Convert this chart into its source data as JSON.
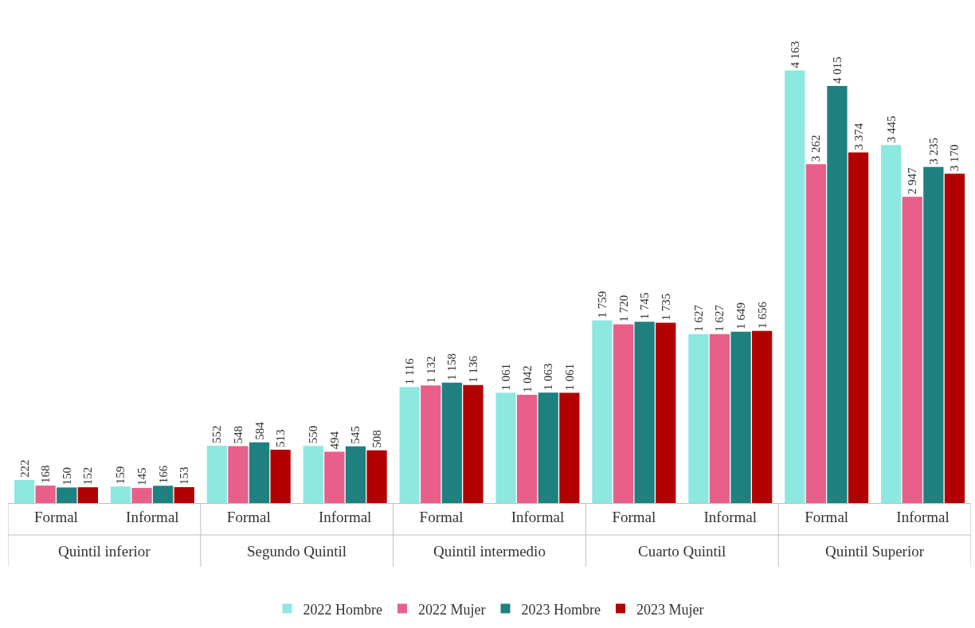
{
  "chart_data": {
    "type": "bar",
    "categories": [
      "Formal",
      "Informal",
      "Formal",
      "Informal",
      "Formal",
      "Informal",
      "Formal",
      "Informal",
      "Formal",
      "Informal"
    ],
    "annotations": [
      "Quintil inferior",
      "Segundo Quintil",
      "Quintil intermedio",
      "Cuarto Quintil",
      "Quintil Superior"
    ],
    "series": [
      {
        "name": "2022 Hombre",
        "color": "#8de8e0",
        "values": [
          222,
          159,
          552,
          550,
          1116,
          1061,
          1759,
          1627,
          4163,
          3445
        ],
        "value_labels": [
          "222",
          "159",
          "552",
          "550",
          "1 116",
          "1 061",
          "1 759",
          "1 627",
          "4 163",
          "3 445"
        ]
      },
      {
        "name": "2022 Mujer",
        "color": "#e8608a",
        "values": [
          168,
          145,
          548,
          494,
          1132,
          1042,
          1720,
          1627,
          3262,
          2947
        ],
        "value_labels": [
          "168",
          "145",
          "548",
          "494",
          "1 132",
          "1 042",
          "1 720",
          "1 627",
          "3 262",
          "2 947"
        ]
      },
      {
        "name": "2023 Hombre",
        "color": "#1f8080",
        "values": [
          150,
          166,
          584,
          545,
          1158,
          1063,
          1745,
          1649,
          4015,
          3235
        ],
        "value_labels": [
          "150",
          "166",
          "584",
          "545",
          "1 158",
          "1 063",
          "1 745",
          "1 649",
          "4 015",
          "3 235"
        ]
      },
      {
        "name": "2023 Mujer",
        "color": "#b30000",
        "values": [
          152,
          153,
          513,
          508,
          1136,
          1061,
          1735,
          1656,
          3374,
          3170
        ],
        "value_labels": [
          "152",
          "153",
          "513",
          "508",
          "1 136",
          "1 061",
          "1 735",
          "1 656",
          "3 374",
          "3 170"
        ]
      }
    ],
    "tick_labels": "x",
    "legend": "bottom"
  }
}
